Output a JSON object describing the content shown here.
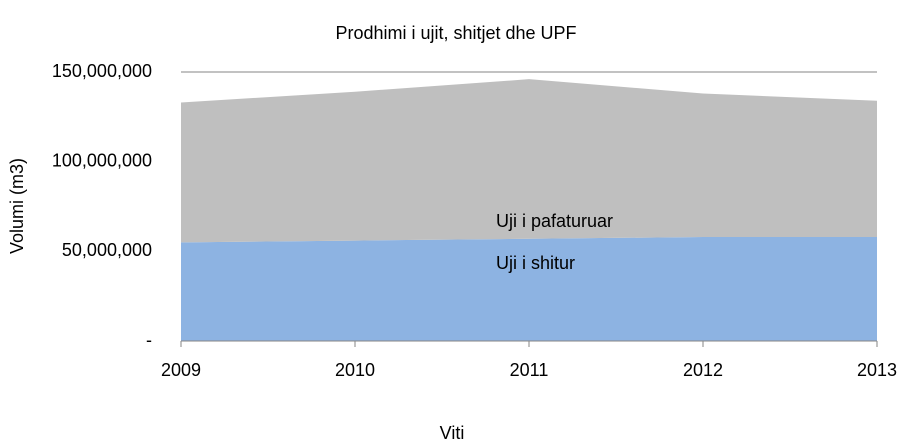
{
  "chart_data": {
    "type": "stacked_area",
    "title": "Prodhimi i ujit, shitjet dhe UPF",
    "x_label": "Viti",
    "y_label": "Volumi (m3)",
    "categories": [
      "2009",
      "2010",
      "2011",
      "2012",
      "2013"
    ],
    "series": [
      {
        "name": "Uji i shitur",
        "color": "#8db3e2",
        "values": [
          55000000,
          56000000,
          57000000,
          58000000,
          58000000
        ]
      },
      {
        "name": "Uji i pafaturuar",
        "color": "#bfbfbf",
        "values": [
          78000000,
          83000000,
          89000000,
          80000000,
          76000000
        ]
      }
    ],
    "ylim": [
      0,
      150000000
    ],
    "yticks": [
      {
        "value": 0,
        "label": "-"
      },
      {
        "value": 50000000,
        "label": "50,000,000"
      },
      {
        "value": 100000000,
        "label": "100,000,000"
      },
      {
        "value": 150000000,
        "label": "150,000,000"
      }
    ],
    "grid": true
  }
}
